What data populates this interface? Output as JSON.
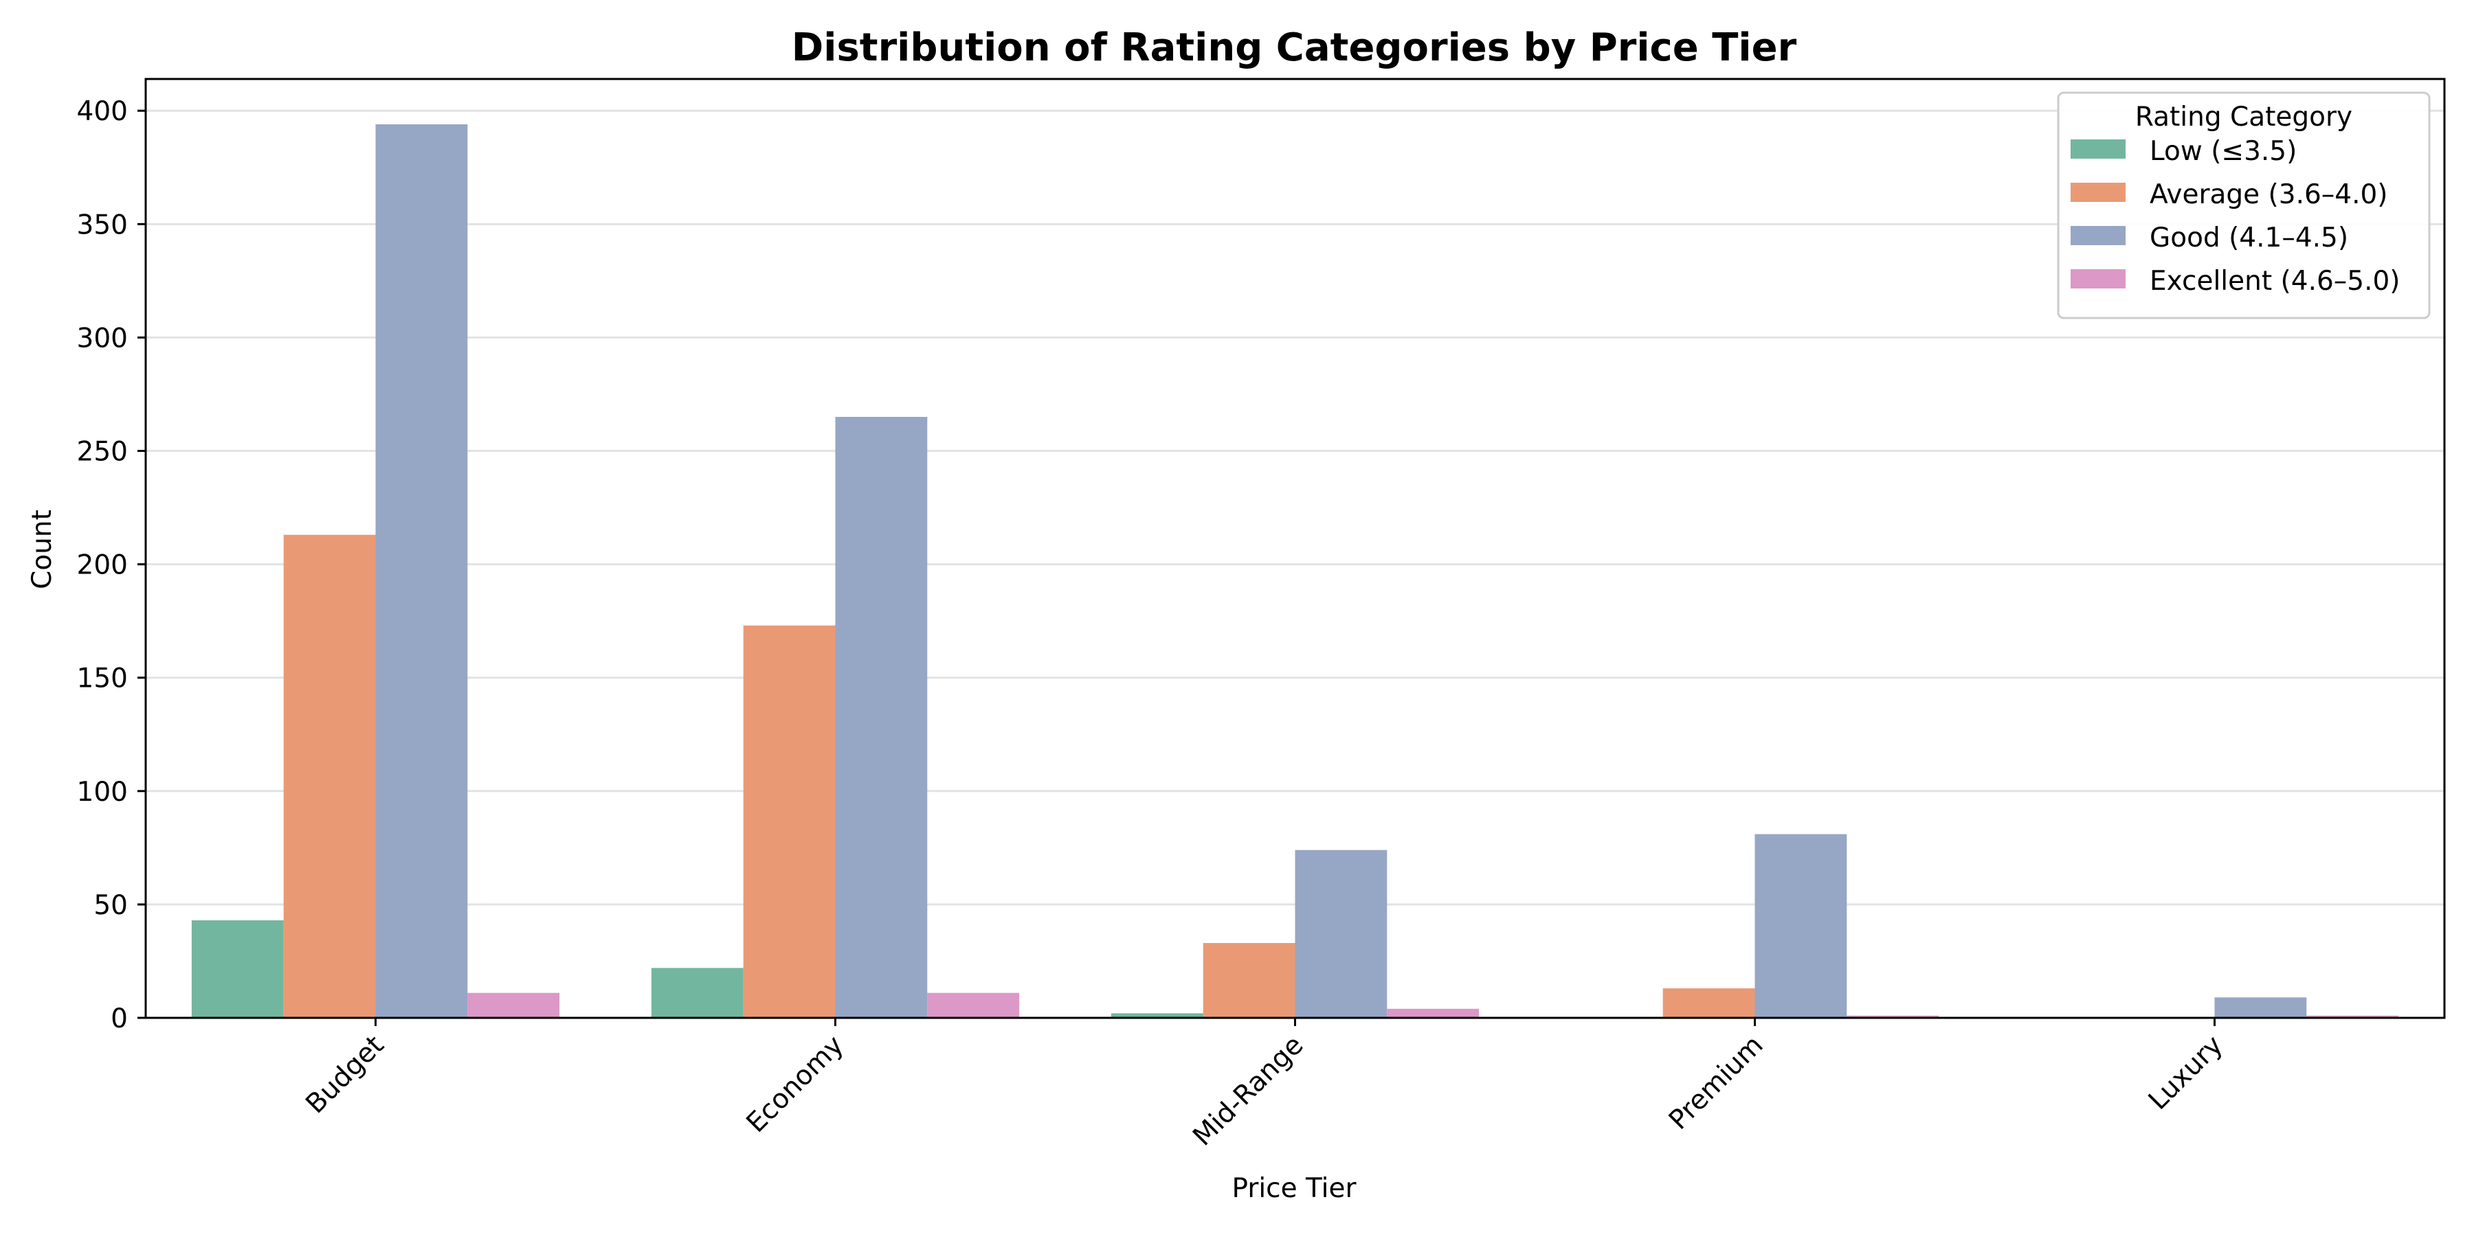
{
  "chart_data": {
    "type": "bar",
    "title": "Distribution of Rating Categories by Price Tier",
    "xlabel": "Price Tier",
    "ylabel": "Count",
    "categories": [
      "Budget",
      "Economy",
      "Mid-Range",
      "Premium",
      "Luxury"
    ],
    "ylim": [
      0,
      414
    ],
    "yticks": [
      0,
      50,
      100,
      150,
      200,
      250,
      300,
      350,
      400
    ],
    "grid": "horizontal",
    "legend": {
      "title": "Rating Category",
      "placement": "top-right"
    },
    "series": [
      {
        "name": "Low (≤3.5)",
        "color": "#73b69f",
        "values": [
          43,
          22,
          2,
          0,
          0
        ]
      },
      {
        "name": "Average (3.6–4.0)",
        "color": "#e99a75",
        "values": [
          213,
          173,
          33,
          13,
          0
        ]
      },
      {
        "name": "Good (4.1–4.5)",
        "color": "#96a6c5",
        "values": [
          394,
          265,
          74,
          81,
          9
        ]
      },
      {
        "name": "Excellent (4.6–5.0)",
        "color": "#dc98c6",
        "values": [
          11,
          11,
          4,
          1,
          1
        ]
      }
    ]
  }
}
